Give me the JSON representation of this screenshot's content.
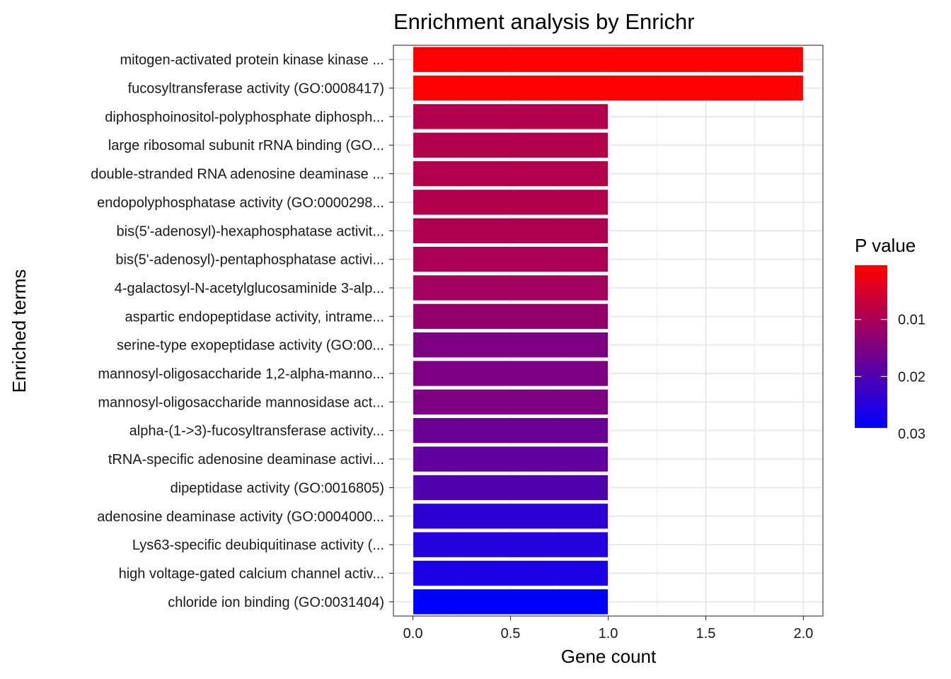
{
  "chart_data": {
    "type": "bar",
    "orientation": "horizontal",
    "title": "Enrichment analysis by Enrichr",
    "xlabel": "Gene count",
    "ylabel": "Enriched terms",
    "xlim": [
      -0.1,
      2.1
    ],
    "xticks": [
      0.0,
      0.5,
      1.0,
      1.5,
      2.0
    ],
    "xtick_labels": [
      "0.0",
      "0.5",
      "1.0",
      "1.5",
      "2.0"
    ],
    "grid": true,
    "categories": [
      "mitogen-activated protein kinase kinase ...",
      "fucosyltransferase activity (GO:0008417)",
      "diphosphoinositol-polyphosphate diphosph...",
      "large ribosomal subunit rRNA binding (GO...",
      "double-stranded RNA adenosine deaminase ...",
      "endopolyphosphatase activity (GO:0000298...",
      "bis(5'-adenosyl)-hexaphosphatase activit...",
      "bis(5'-adenosyl)-pentaphosphatase activi...",
      "4-galactosyl-N-acetylglucosaminide 3-alp...",
      "aspartic endopeptidase activity, intrame...",
      "serine-type exopeptidase activity (GO:00...",
      "mannosyl-oligosaccharide 1,2-alpha-manno...",
      "mannosyl-oligosaccharide mannosidase act...",
      "alpha-(1->3)-fucosyltransferase activity...",
      "tRNA-specific adenosine deaminase activi...",
      "dipeptidase activity (GO:0016805)",
      "adenosine deaminase activity (GO:0004000...",
      "Lys63-specific deubiquitinase activity (...",
      "high voltage-gated calcium channel activ...",
      "chloride ion binding (GO:0031404)"
    ],
    "values": [
      2,
      2,
      1,
      1,
      1,
      1,
      1,
      1,
      1,
      1,
      1,
      1,
      1,
      1,
      1,
      1,
      1,
      1,
      1,
      1
    ],
    "p_values": [
      0.0005,
      0.0005,
      0.009,
      0.009,
      0.009,
      0.009,
      0.0095,
      0.01,
      0.011,
      0.0125,
      0.015,
      0.015,
      0.015,
      0.017,
      0.018,
      0.02,
      0.024,
      0.025,
      0.026,
      0.029
    ],
    "legend": {
      "title": "P value",
      "position": "right",
      "range": [
        0.0005,
        0.029
      ],
      "low_color": "#FF0000",
      "high_color": "#0000FF",
      "ticks": [
        0.01,
        0.02,
        0.03
      ],
      "tick_labels": [
        "0.01",
        "0.02",
        "0.03"
      ]
    }
  }
}
